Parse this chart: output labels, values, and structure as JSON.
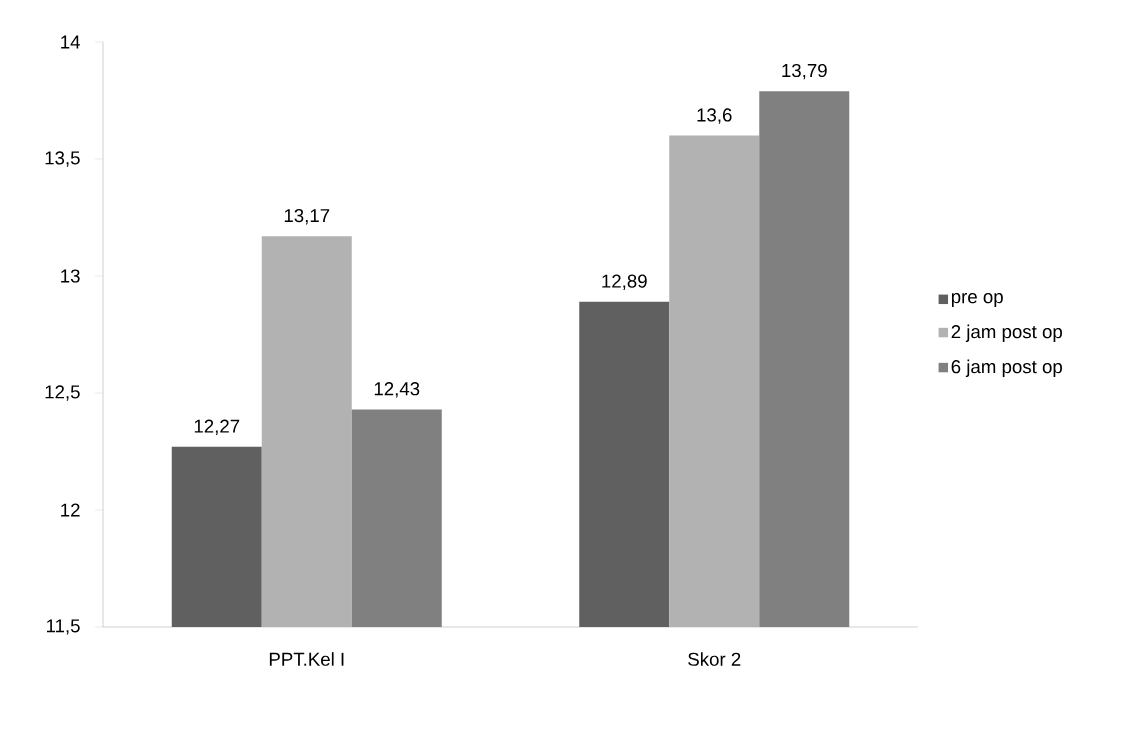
{
  "chart_data": {
    "type": "bar",
    "categories": [
      "PPT.Kel I",
      "Skor 2"
    ],
    "series": [
      {
        "name": "pre op",
        "color": "#606060",
        "values": [
          12.27,
          12.89
        ],
        "value_labels": [
          "12,27",
          "12,89"
        ]
      },
      {
        "name": "2 jam post op",
        "color": "#b2b2b2",
        "values": [
          13.17,
          13.6
        ],
        "value_labels": [
          "13,17",
          "13,6"
        ]
      },
      {
        "name": "6 jam post op",
        "color": "#808080",
        "values": [
          12.43,
          13.79
        ],
        "value_labels": [
          "12,43",
          "13,79"
        ]
      }
    ],
    "ylim": [
      11.5,
      14
    ],
    "yticks": [
      {
        "value": 11.5,
        "label": "11,5"
      },
      12,
      {
        "value": 12.5,
        "label": "12,5"
      },
      13,
      {
        "value": 13.5,
        "label": "13,5"
      },
      14
    ],
    "grid": false,
    "legend": "right"
  }
}
